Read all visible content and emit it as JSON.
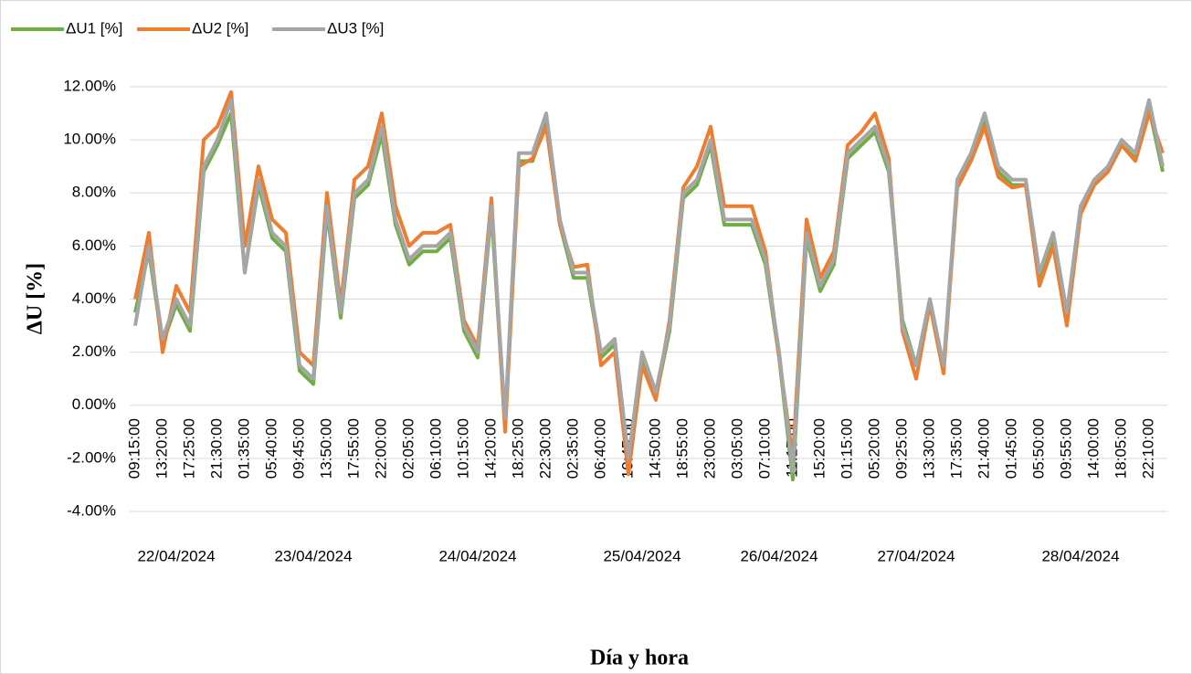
{
  "chart_data": {
    "type": "line",
    "y_axis_label": "ΔU [%]",
    "x_axis_label": "Día y hora",
    "days": [
      {
        "label": "22/04/2024",
        "times": [
          "09:15:00",
          null,
          "13:20:00",
          null,
          "17:25:00",
          null,
          "21:30:00",
          null
        ]
      },
      {
        "label": "23/04/2024",
        "times": [
          "01:35:00",
          null,
          "05:40:00",
          null,
          "09:45:00",
          null,
          "13:50:00",
          null,
          "17:55:00",
          null,
          "22:00:00",
          null
        ]
      },
      {
        "label": "24/04/2024",
        "times": [
          "02:05:00",
          null,
          "06:10:00",
          null,
          "10:15:00",
          null,
          "14:20:00",
          null,
          "18:25:00",
          null,
          "22:30:00",
          null
        ]
      },
      {
        "label": "25/04/2024",
        "times": [
          "02:35:00",
          null,
          "06:40:00",
          null,
          "10:45:00",
          null,
          "14:50:00",
          null,
          "18:55:00",
          null,
          "23:00:00",
          null
        ]
      },
      {
        "label": "26/04/2024",
        "times": [
          "03:05:00",
          null,
          "07:10:00",
          null,
          "11:15:00",
          null,
          "15:20:00",
          null
        ]
      },
      {
        "label": "27/04/2024",
        "times": [
          "01:15:00",
          null,
          "05:20:00",
          null,
          "09:25:00",
          null,
          "13:30:00",
          null,
          "17:35:00",
          null,
          "21:40:00",
          null
        ]
      },
      {
        "label": "28/04/2024",
        "times": [
          "01:45:00",
          null,
          "05:50:00",
          null,
          "09:55:00",
          null,
          "14:00:00",
          null,
          "18:05:00",
          null,
          "22:10:00",
          null
        ]
      }
    ],
    "series": [
      {
        "name": "ΔU1 [%]",
        "color": "#70ad47",
        "values": [
          3.5,
          5.8,
          2.3,
          3.8,
          2.8,
          8.8,
          9.8,
          11,
          5,
          8.3,
          6.3,
          5.8,
          1.3,
          0.8,
          7.3,
          3.3,
          7.8,
          8.3,
          10.2,
          6.8,
          5.3,
          5.8,
          5.8,
          6.3,
          2.8,
          1.8,
          7.3,
          -0.8,
          9.2,
          9.2,
          10.7,
          6.8,
          4.8,
          4.8,
          1.8,
          2.3,
          -2.3,
          1.8,
          0.3,
          2.8,
          7.8,
          8.3,
          9.8,
          6.8,
          6.8,
          6.8,
          5.3,
          1.8,
          -2.8,
          6.3,
          4.3,
          5.3,
          9.3,
          9.8,
          10.3,
          8.8,
          3.2,
          1.5,
          4,
          1.4,
          8.3,
          9.3,
          10.8,
          8.8,
          8.3,
          8.3,
          4.8,
          6.3,
          3.3,
          7.3,
          8.3,
          8.8,
          9.8,
          9.3,
          11.2,
          8.8
        ]
      },
      {
        "name": "ΔU2 [%]",
        "color": "#ed7d31",
        "values": [
          4,
          6.5,
          2,
          4.5,
          3.5,
          10,
          10.5,
          11.8,
          6,
          9,
          7,
          6.5,
          2,
          1.5,
          8,
          3.8,
          8.5,
          9,
          11,
          7.5,
          6,
          6.5,
          6.5,
          6.8,
          3.2,
          2.2,
          7.8,
          -1,
          9,
          9.3,
          10.5,
          6.8,
          5.2,
          5.3,
          1.5,
          2,
          -2.6,
          1.5,
          0.2,
          3.2,
          8.2,
          9,
          10.5,
          7.5,
          7.5,
          7.5,
          5.8,
          1.8,
          -2,
          7,
          4.8,
          5.8,
          9.8,
          10.3,
          11,
          9.3,
          2.8,
          1,
          3.8,
          1.2,
          8.2,
          9.2,
          10.5,
          8.6,
          8.2,
          8.3,
          4.5,
          6,
          3,
          7.2,
          8.3,
          8.8,
          9.8,
          9.2,
          11,
          9.5
        ]
      },
      {
        "name": "ΔU3 [%]",
        "color": "#a5a5a5",
        "values": [
          3,
          6,
          2.5,
          4,
          3,
          9,
          10,
          11.5,
          5,
          8.5,
          6.5,
          6,
          1.5,
          1,
          7.5,
          3.5,
          8,
          8.5,
          10.5,
          7,
          5.5,
          6,
          6,
          6.5,
          3,
          2,
          7.5,
          -0.5,
          9.5,
          9.5,
          11,
          7,
          5,
          5,
          2,
          2.5,
          -2,
          2,
          0.5,
          3,
          8,
          8.5,
          10,
          7,
          7,
          7,
          5.5,
          2,
          -2.5,
          6.5,
          4.5,
          5.5,
          9.5,
          10,
          10.5,
          9,
          3,
          1.5,
          4,
          1.5,
          8.5,
          9.5,
          11,
          9,
          8.5,
          8.5,
          5,
          6.5,
          3.5,
          7.5,
          8.5,
          9,
          10,
          9.5,
          11.5,
          9
        ]
      }
    ],
    "ylim": [
      -4,
      12
    ],
    "yticks": [
      {
        "value": -4,
        "label": "-4.00%"
      },
      {
        "value": -2,
        "label": "-2.00%"
      },
      {
        "value": 0,
        "label": "0.00%"
      },
      {
        "value": 2,
        "label": "2.00%"
      },
      {
        "value": 4,
        "label": "4.00%"
      },
      {
        "value": 6,
        "label": "6.00%"
      },
      {
        "value": 8,
        "label": "8.00%"
      },
      {
        "value": 10,
        "label": "10.00%"
      },
      {
        "value": 12,
        "label": "12.00%"
      }
    ],
    "grid": true,
    "legend": "top-left"
  }
}
